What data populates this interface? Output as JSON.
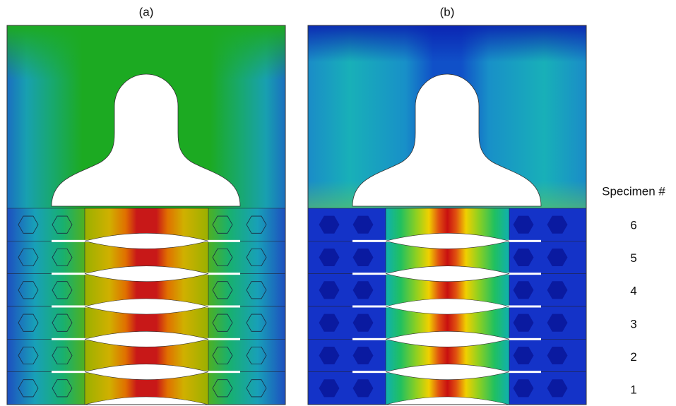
{
  "panels": [
    {
      "label": "(a)"
    },
    {
      "label": "(b)"
    }
  ],
  "specimens": {
    "title": "Specimen #",
    "labels": [
      "6",
      "5",
      "4",
      "3",
      "2",
      "1"
    ]
  }
}
